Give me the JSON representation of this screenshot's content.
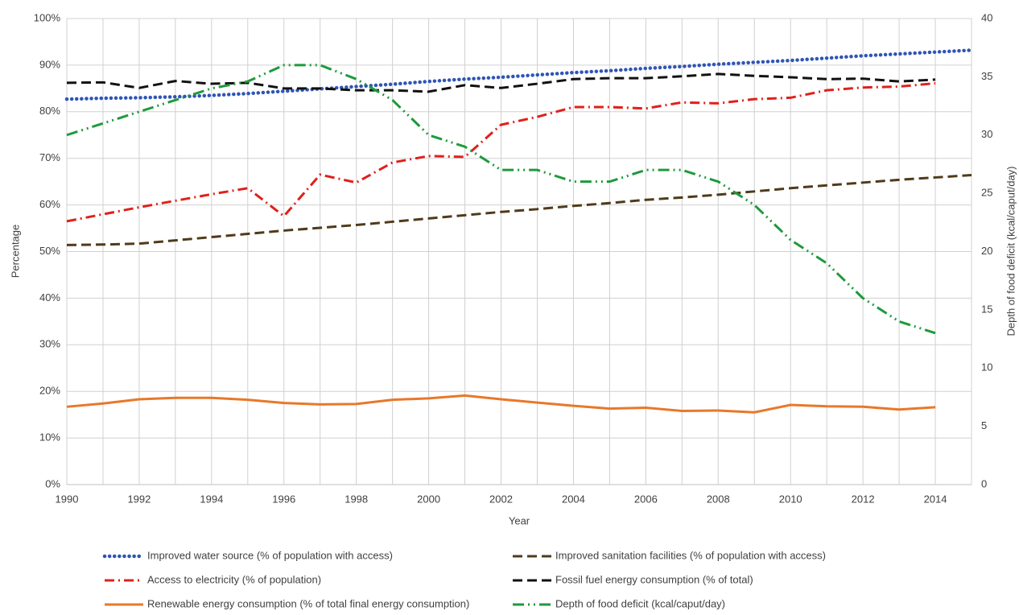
{
  "chart_data": {
    "type": "line",
    "x_label": "Year",
    "y_label": "Percentage",
    "y2_label": "Depth of food deficit (kcal/caput/day)",
    "x": [
      1990,
      1991,
      1992,
      1993,
      1994,
      1995,
      1996,
      1997,
      1998,
      1999,
      2000,
      2001,
      2002,
      2003,
      2004,
      2005,
      2006,
      2007,
      2008,
      2009,
      2010,
      2011,
      2012,
      2013,
      2014,
      2015
    ],
    "xlim": [
      1990,
      2015
    ],
    "xticks": [
      1990,
      1992,
      1994,
      1996,
      1998,
      2000,
      2002,
      2004,
      2006,
      2008,
      2010,
      2012,
      2014
    ],
    "xminorticks": [
      1991,
      1993,
      1995,
      1997,
      1999,
      2001,
      2003,
      2005,
      2007,
      2009,
      2011,
      2013,
      2015
    ],
    "ylim": [
      0,
      100
    ],
    "yticks": [
      {
        "value": 0,
        "label": "0%"
      },
      {
        "value": 10,
        "label": "10%"
      },
      {
        "value": 20,
        "label": "20%"
      },
      {
        "value": 30,
        "label": "30%"
      },
      {
        "value": 40,
        "label": "40%"
      },
      {
        "value": 50,
        "label": "50%"
      },
      {
        "value": 60,
        "label": "60%"
      },
      {
        "value": 70,
        "label": "70%"
      },
      {
        "value": 80,
        "label": "80%"
      },
      {
        "value": 90,
        "label": "90%"
      },
      {
        "value": 100,
        "label": "100%"
      }
    ],
    "y2lim": [
      0,
      40
    ],
    "y2ticks": [
      0,
      5,
      10,
      15,
      20,
      25,
      30,
      35,
      40
    ],
    "grid": true,
    "legend": "bottom",
    "series": [
      {
        "name": "Improved water source (% of population with access)",
        "color": "#2f55b5",
        "dash": "dot",
        "values": [
          82.7,
          82.9,
          83.0,
          83.2,
          83.5,
          83.9,
          84.4,
          84.9,
          85.4,
          85.9,
          86.5,
          87.0,
          87.4,
          87.9,
          88.4,
          88.8,
          89.3,
          89.7,
          90.2,
          90.6,
          91.0,
          91.5,
          92.0,
          92.4,
          92.8,
          93.2
        ]
      },
      {
        "name": "Improved sanitation facilities (% of population with access)",
        "color": "#4f3b1a",
        "dash": "dash",
        "values": [
          51.4,
          51.5,
          51.7,
          52.4,
          53.1,
          53.8,
          54.5,
          55.1,
          55.7,
          56.4,
          57.1,
          57.8,
          58.5,
          59.1,
          59.8,
          60.4,
          61.1,
          61.6,
          62.2,
          62.9,
          63.6,
          64.2,
          64.8,
          65.4,
          65.9,
          66.4
        ]
      },
      {
        "name": "Access to electricity (% of population)",
        "color": "#e0201b",
        "dash": "dashdot",
        "values": [
          56.5,
          58.0,
          59.5,
          60.9,
          62.3,
          63.6,
          57.6,
          66.5,
          64.8,
          69.1,
          70.5,
          70.3,
          77.2,
          78.9,
          81.0,
          81.0,
          80.7,
          82.0,
          81.8,
          82.7,
          83.0,
          84.6,
          85.2,
          85.4,
          86.1,
          null
        ]
      },
      {
        "name": "Fossil fuel energy consumption (% of total)",
        "color": "#111111",
        "dash": "dash",
        "values": [
          86.2,
          86.3,
          85.1,
          86.6,
          86.0,
          86.2,
          85.0,
          85.0,
          84.6,
          84.6,
          84.3,
          85.7,
          85.1,
          86.0,
          87.0,
          87.2,
          87.2,
          87.6,
          88.1,
          87.7,
          87.4,
          87.0,
          87.1,
          86.5,
          86.9,
          null
        ]
      },
      {
        "name": "Renewable energy consumption (% of total final energy consumption)",
        "color": "#e8782a",
        "dash": "solid",
        "values": [
          16.7,
          17.4,
          18.3,
          18.6,
          18.6,
          18.2,
          17.5,
          17.2,
          17.3,
          18.2,
          18.5,
          19.1,
          18.3,
          17.6,
          16.9,
          16.3,
          16.5,
          15.8,
          15.9,
          15.5,
          17.1,
          16.8,
          16.7,
          16.1,
          16.6,
          null
        ]
      },
      {
        "name": "Depth of food deficit (kcal/caput/day)",
        "color": "#1e9a3c",
        "dash": "dashdotdot",
        "axis": "y2",
        "values": [
          30,
          31,
          32,
          33,
          34,
          34.6,
          36,
          36,
          34.8,
          33,
          30,
          29,
          27,
          27,
          26,
          26,
          27,
          27,
          26,
          24,
          21,
          19,
          16,
          14,
          13,
          null
        ]
      }
    ]
  }
}
